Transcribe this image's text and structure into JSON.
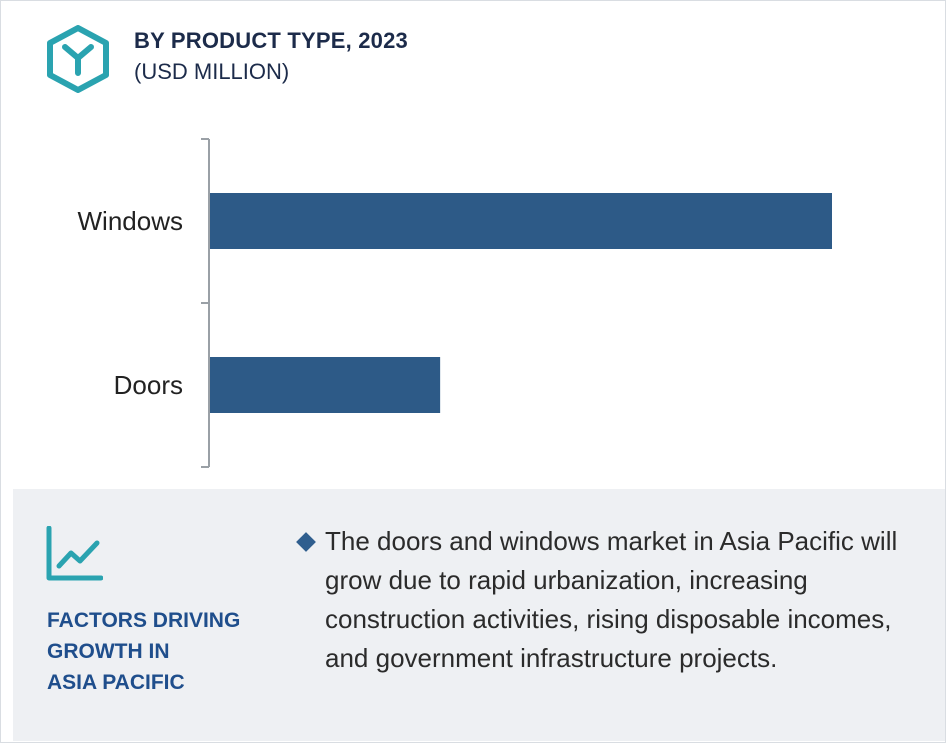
{
  "header": {
    "icon": "product-cube-icon",
    "title": "BY PRODUCT TYPE, 2023",
    "subtitle": "(USD MILLION)"
  },
  "chart_data": {
    "type": "bar",
    "orientation": "horizontal",
    "categories": [
      "Windows",
      "Doors"
    ],
    "values": [
      100,
      37
    ],
    "value_scale": "relative (no axis values shown)",
    "bar_color": "#2d5a87",
    "title": "BY PRODUCT TYPE, 2023",
    "subtitle": "(USD MILLION)",
    "grid": false,
    "legend": "none"
  },
  "footer": {
    "icon": "trend-chart-icon",
    "title_lines": [
      "FACTORS DRIVING",
      "GROWTH IN",
      "ASIA PACIFIC"
    ],
    "bullet": "The doors and windows market in Asia Pacific will grow due to rapid urbanization, increasing construction activities, rising disposable incomes, and government infrastructure projects."
  },
  "colors": {
    "accent_teal": "#2aa3b0",
    "bar_blue": "#2d5a87",
    "heading_navy": "#1c2b4a",
    "factors_blue": "#1f4e8c",
    "panel_gray": "#eef0f3"
  }
}
